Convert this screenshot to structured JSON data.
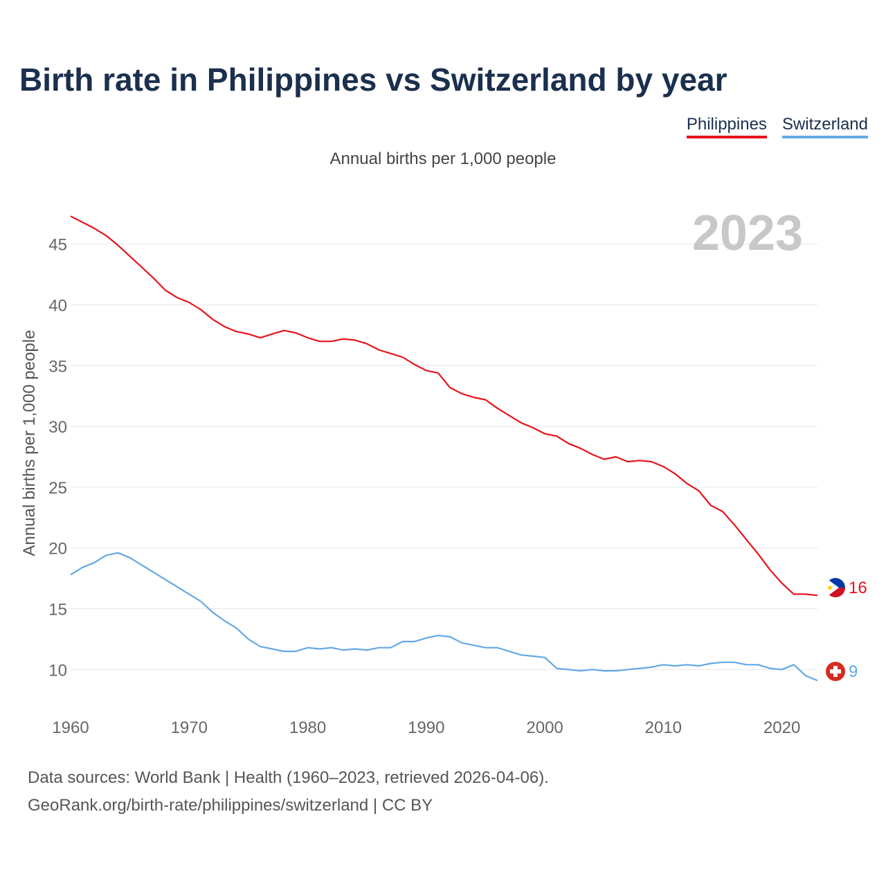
{
  "title": "Birth rate in Philippines vs Switzerland by year",
  "subtitle": "Annual births per 1,000 people",
  "legend": [
    {
      "label": "Philippines",
      "color": "#e8121a"
    },
    {
      "label": "Switzerland",
      "color": "#62a8e8"
    }
  ],
  "year_badge": "2023",
  "footer": {
    "line1": "Data sources: World Bank | Health (1960–2023, retrieved 2026-04-06).",
    "line2": "GeoRank.org/birth-rate/philippines/switzerland | CC BY"
  },
  "end_labels": {
    "philippines": "16",
    "switzerland": "9"
  },
  "chart_data": {
    "type": "line",
    "title": "Birth rate in Philippines vs Switzerland by year",
    "ylabel": "Annual births per 1,000 people",
    "xlabel": "",
    "xlim": [
      1960,
      2023
    ],
    "ylim": [
      7,
      48
    ],
    "x_ticks": [
      1960,
      1970,
      1980,
      1990,
      2000,
      2010,
      2020
    ],
    "y_ticks": [
      10,
      15,
      20,
      25,
      30,
      35,
      40,
      45
    ],
    "grid": true,
    "x": [
      1960,
      1961,
      1962,
      1963,
      1964,
      1965,
      1966,
      1967,
      1968,
      1969,
      1970,
      1971,
      1972,
      1973,
      1974,
      1975,
      1976,
      1977,
      1978,
      1979,
      1980,
      1981,
      1982,
      1983,
      1984,
      1985,
      1986,
      1987,
      1988,
      1989,
      1990,
      1991,
      1992,
      1993,
      1994,
      1995,
      1996,
      1997,
      1998,
      1999,
      2000,
      2001,
      2002,
      2003,
      2004,
      2005,
      2006,
      2007,
      2008,
      2009,
      2010,
      2011,
      2012,
      2013,
      2014,
      2015,
      2016,
      2017,
      2018,
      2019,
      2020,
      2021,
      2022,
      2023
    ],
    "series": [
      {
        "name": "Philippines",
        "color": "#e8121a",
        "values": [
          47.3,
          46.8,
          46.3,
          45.7,
          44.9,
          44.0,
          43.1,
          42.2,
          41.2,
          40.6,
          40.2,
          39.6,
          38.8,
          38.2,
          37.8,
          37.6,
          37.3,
          37.6,
          37.9,
          37.7,
          37.3,
          37.0,
          37.0,
          37.2,
          37.1,
          36.8,
          36.3,
          36.0,
          35.7,
          35.1,
          34.6,
          34.4,
          33.2,
          32.7,
          32.4,
          32.2,
          31.5,
          30.9,
          30.3,
          29.9,
          29.4,
          29.2,
          28.6,
          28.2,
          27.7,
          27.3,
          27.5,
          27.1,
          27.2,
          27.1,
          26.7,
          26.1,
          25.3,
          24.7,
          23.5,
          23.0,
          21.9,
          20.7,
          19.5,
          18.2,
          17.1,
          16.2,
          16.2,
          16.1
        ]
      },
      {
        "name": "Switzerland",
        "color": "#62a8e8",
        "values": [
          17.8,
          18.4,
          18.8,
          19.4,
          19.6,
          19.2,
          18.6,
          18.0,
          17.4,
          16.8,
          16.2,
          15.6,
          14.7,
          14.0,
          13.4,
          12.5,
          11.9,
          11.7,
          11.5,
          11.5,
          11.8,
          11.7,
          11.8,
          11.6,
          11.7,
          11.6,
          11.8,
          11.8,
          12.3,
          12.3,
          12.6,
          12.8,
          12.7,
          12.2,
          12.0,
          11.8,
          11.8,
          11.5,
          11.2,
          11.1,
          11.0,
          10.1,
          10.0,
          9.9,
          10.0,
          9.9,
          9.9,
          10.0,
          10.1,
          10.2,
          10.4,
          10.3,
          10.4,
          10.3,
          10.5,
          10.6,
          10.6,
          10.4,
          10.4,
          10.1,
          10.0,
          10.4,
          9.5,
          9.1
        ]
      }
    ]
  }
}
